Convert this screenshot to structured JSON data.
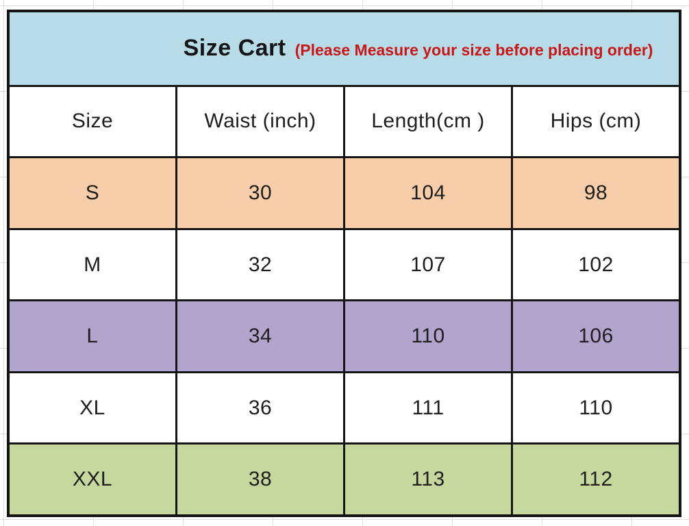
{
  "table": {
    "title": {
      "main": "Size Cart",
      "note": "(Please Measure your size before placing order)",
      "main_color": "#161616",
      "note_color": "#c81719",
      "background": "#b8dbe8"
    },
    "columns": [
      "Size",
      "Waist (inch)",
      "Length(cm )",
      "Hips (cm)"
    ],
    "rows": [
      {
        "size": "S",
        "waist": "30",
        "length": "104",
        "hips": "98",
        "background": "#f8cda9"
      },
      {
        "size": "M",
        "waist": "32",
        "length": "107",
        "hips": "102",
        "background": "#ffffff"
      },
      {
        "size": "L",
        "waist": "34",
        "length": "110",
        "hips": "106",
        "background": "#b1a5ce"
      },
      {
        "size": "XL",
        "waist": "36",
        "length": "111",
        "hips": "110",
        "background": "#ffffff"
      },
      {
        "size": "XXL",
        "waist": "38",
        "length": "113",
        "hips": "112",
        "background": "#c6d89e"
      }
    ],
    "border_color": "#141414",
    "gridline_color": "#dedede"
  },
  "chart_data": {
    "type": "table",
    "title": "Size Cart",
    "subtitle": "(Please Measure your size before placing order)",
    "columns": [
      "Size",
      "Waist (inch)",
      "Length(cm )",
      "Hips (cm)"
    ],
    "rows": [
      [
        "S",
        30,
        104,
        98
      ],
      [
        "M",
        32,
        107,
        102
      ],
      [
        "L",
        34,
        110,
        106
      ],
      [
        "XL",
        36,
        111,
        110
      ],
      [
        "XXL",
        38,
        113,
        112
      ]
    ],
    "row_backgrounds": [
      "#f8cda9",
      "#ffffff",
      "#b1a5ce",
      "#ffffff",
      "#c6d89e"
    ],
    "header_background": "#b8dbe8"
  }
}
